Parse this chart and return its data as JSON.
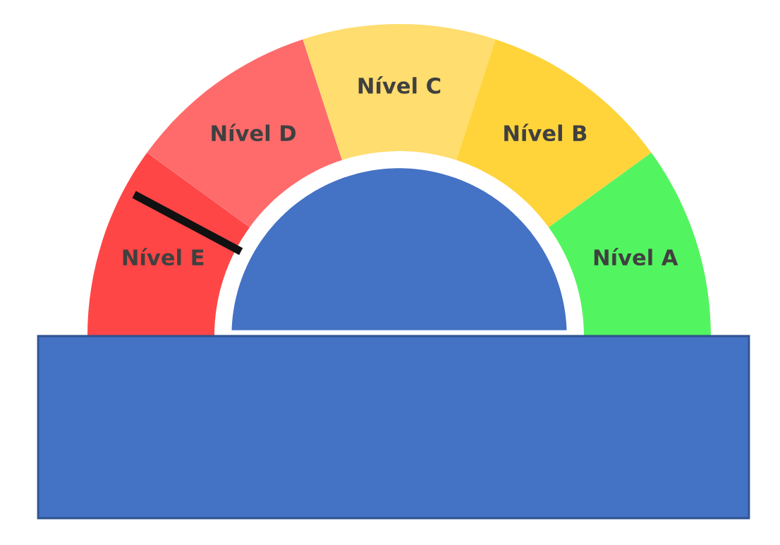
{
  "chart_data": {
    "type": "donut",
    "categories": [
      "Nível E",
      "Nível D",
      "Nível C",
      "Nível B",
      "Nível A"
    ],
    "values": [
      20,
      20,
      20,
      20,
      20
    ],
    "colors": [
      "#ff4646",
      "#ff6b6b",
      "#ffdd6e",
      "#ffd43b",
      "#52f55f"
    ],
    "needle": "Nível E"
  }
}
